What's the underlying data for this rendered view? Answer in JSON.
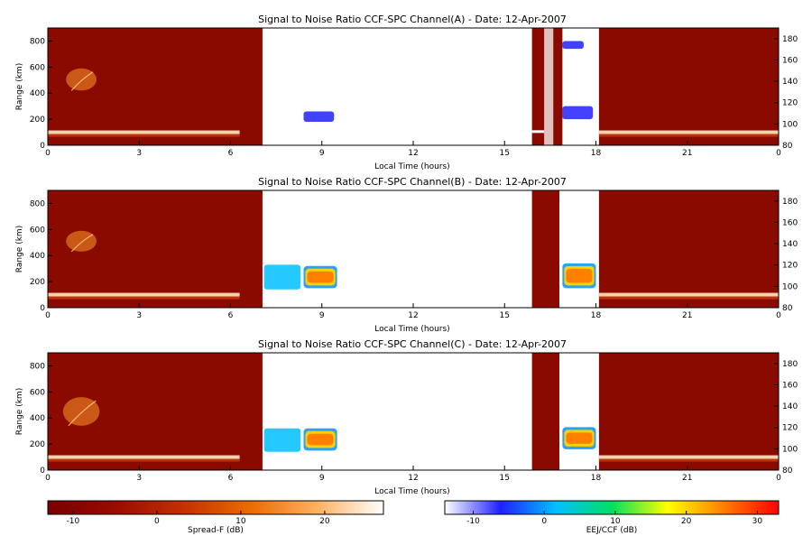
{
  "chart_data": {
    "type": "heatmap",
    "panels": [
      {
        "title": "Signal to Noise Ratio CCF-SPC Channel(A) - Date: 12-Apr-2007",
        "xlabel": "Local Time (hours)",
        "ylabel": "Range (km)",
        "xlim": [
          0,
          24
        ],
        "ylim_left": [
          0,
          900
        ],
        "ylim_right": [
          80,
          190
        ],
        "x_ticks": [
          "0",
          "3",
          "6",
          "9",
          "12",
          "15",
          "18",
          "21",
          "0"
        ],
        "y_ticks_left": [
          "0",
          "200",
          "400",
          "600",
          "800"
        ],
        "y_ticks_right": [
          "80",
          "100",
          "120",
          "140",
          "160",
          "180"
        ],
        "spreadf_segments": [
          [
            0,
            7.05
          ],
          [
            18.1,
            24
          ]
        ],
        "spreadf_trace_bands": [
          {
            "t0": 0,
            "t1": 6.3,
            "range_km": 100
          },
          {
            "t0": 18.1,
            "t1": 24,
            "range_km": 100
          }
        ],
        "spreadf_plumes": [
          {
            "t0": 0.6,
            "t1": 1.6,
            "range_min_km": 420,
            "range_max_km": 590
          }
        ],
        "eej_blobs": [
          {
            "t0": 8.4,
            "t1": 9.4,
            "range_min_km": 180,
            "range_max_km": 260,
            "level_db": -5
          },
          {
            "t0": 16.9,
            "t1": 17.9,
            "range_min_km": 200,
            "range_max_km": 300,
            "level_db": -5
          },
          {
            "t0": 16.9,
            "t1": 17.6,
            "range_min_km": 740,
            "range_max_km": 800,
            "level_db": -8
          }
        ],
        "gap_segment": [
          15.9,
          16.9
        ],
        "gap_stripe": [
          16.3,
          16.6
        ]
      },
      {
        "title": "Signal to Noise Ratio CCF-SPC Channel(B) - Date: 12-Apr-2007",
        "xlabel": "Local Time (hours)",
        "ylabel": "Range (km)",
        "xlim": [
          0,
          24
        ],
        "ylim_left": [
          0,
          900
        ],
        "ylim_right": [
          80,
          190
        ],
        "x_ticks": [
          "0",
          "3",
          "6",
          "9",
          "12",
          "15",
          "18",
          "21",
          "0"
        ],
        "y_ticks_left": [
          "0",
          "200",
          "400",
          "600",
          "800"
        ],
        "y_ticks_right": [
          "80",
          "100",
          "120",
          "140",
          "160",
          "180"
        ],
        "spreadf_segments": [
          [
            0,
            7.05
          ],
          [
            15.9,
            16.8
          ],
          [
            18.1,
            24
          ]
        ],
        "spreadf_trace_bands": [
          {
            "t0": 0,
            "t1": 6.3,
            "range_km": 100
          },
          {
            "t0": 18.1,
            "t1": 24,
            "range_km": 100
          }
        ],
        "spreadf_plumes": [
          {
            "t0": 0.6,
            "t1": 1.6,
            "range_min_km": 430,
            "range_max_km": 590
          }
        ],
        "eej_blobs": [
          {
            "t0": 7.1,
            "t1": 8.3,
            "range_min_km": 140,
            "range_max_km": 330,
            "level_db": 5
          },
          {
            "t0": 8.4,
            "t1": 9.5,
            "range_min_km": 150,
            "range_max_km": 320,
            "level_db": 28
          },
          {
            "t0": 16.9,
            "t1": 18.0,
            "range_min_km": 150,
            "range_max_km": 340,
            "level_db": 28
          }
        ],
        "gap_segment": null,
        "gap_stripe": null
      },
      {
        "title": "Signal to Noise Ratio CCF-SPC Channel(C) - Date: 12-Apr-2007",
        "xlabel": "Local Time (hours)",
        "ylabel": "Range (km)",
        "xlim": [
          0,
          24
        ],
        "ylim_left": [
          0,
          900
        ],
        "ylim_right": [
          80,
          190
        ],
        "x_ticks": [
          "0",
          "3",
          "6",
          "9",
          "12",
          "15",
          "18",
          "21",
          "0"
        ],
        "y_ticks_left": [
          "0",
          "200",
          "400",
          "600",
          "800"
        ],
        "y_ticks_right": [
          "80",
          "100",
          "120",
          "140",
          "160",
          "180"
        ],
        "spreadf_segments": [
          [
            0,
            7.05
          ],
          [
            15.9,
            16.8
          ],
          [
            18.1,
            24
          ]
        ],
        "spreadf_trace_bands": [
          {
            "t0": 0,
            "t1": 6.3,
            "range_km": 100
          },
          {
            "t0": 18.1,
            "t1": 24,
            "range_km": 100
          }
        ],
        "spreadf_plumes": [
          {
            "t0": 0.5,
            "t1": 1.7,
            "range_min_km": 340,
            "range_max_km": 560
          }
        ],
        "eej_blobs": [
          {
            "t0": 7.1,
            "t1": 8.3,
            "range_min_km": 140,
            "range_max_km": 320,
            "level_db": 5
          },
          {
            "t0": 8.4,
            "t1": 9.5,
            "range_min_km": 150,
            "range_max_km": 320,
            "level_db": 28
          },
          {
            "t0": 16.9,
            "t1": 18.0,
            "range_min_km": 160,
            "range_max_km": 330,
            "level_db": 28
          }
        ],
        "gap_segment": null,
        "gap_stripe": null
      }
    ],
    "colorbars": [
      {
        "label": "Spread-F (dB)",
        "range": [
          -13,
          27
        ],
        "ticks": [
          -10,
          0,
          10,
          20
        ],
        "stops": [
          "#7a0000",
          "#9a0a00",
          "#c23000",
          "#ea6a00",
          "#ffb060",
          "#ffffff"
        ]
      },
      {
        "label": "EEJ/CCF (dB)",
        "range": [
          -14,
          33
        ],
        "ticks": [
          -10,
          0,
          10,
          20,
          30
        ],
        "stops": [
          "#ffffff",
          "#2020ff",
          "#00c0ff",
          "#00e060",
          "#ffff00",
          "#ff8000",
          "#ff0000"
        ]
      }
    ]
  },
  "colors": {
    "spreadf_background": "#8b0a00",
    "trace": "#ffe8c0",
    "plume": "#ff9a2a",
    "eej_low": "#3a5cff",
    "eej_high": "#ff1a00",
    "gap_stripe": "#ffffff"
  }
}
